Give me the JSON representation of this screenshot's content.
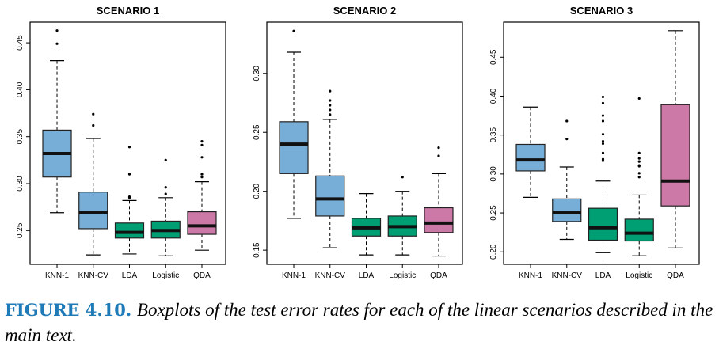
{
  "colors": {
    "knn": "#76aed8",
    "linear": "#009e73",
    "qda": "#cc79a7"
  },
  "caption": {
    "label": "FIGURE 4.10.",
    "text": "Boxplots of the test error rates for each of the linear scenarios described in the main text."
  },
  "chart_data": [
    {
      "type": "boxplot",
      "title": "SCENARIO 1",
      "categories": [
        "KNN-1",
        "KNN-CV",
        "LDA",
        "Logistic",
        "QDA"
      ],
      "ylim": [
        0.214,
        0.472
      ],
      "yticks": [
        0.25,
        0.3,
        0.35,
        0.4,
        0.45
      ],
      "ytick_labels": [
        "0.25",
        "0.30",
        "0.35",
        "0.40",
        "0.45"
      ],
      "boxes": [
        {
          "low": 0.269,
          "q1": 0.307,
          "median": 0.332,
          "q3": 0.357,
          "high": 0.431,
          "outliers": [
            0.463,
            0.449
          ],
          "color": "knn"
        },
        {
          "low": 0.224,
          "q1": 0.252,
          "median": 0.269,
          "q3": 0.291,
          "high": 0.348,
          "outliers": [
            0.374,
            0.362
          ],
          "color": "knn"
        },
        {
          "low": 0.225,
          "q1": 0.242,
          "median": 0.248,
          "q3": 0.258,
          "high": 0.282,
          "outliers": [
            0.339,
            0.31,
            0.286,
            0.285
          ],
          "color": "linear"
        },
        {
          "low": 0.223,
          "q1": 0.242,
          "median": 0.25,
          "q3": 0.26,
          "high": 0.285,
          "outliers": [
            0.325,
            0.296,
            0.289
          ],
          "color": "linear"
        },
        {
          "low": 0.229,
          "q1": 0.246,
          "median": 0.255,
          "q3": 0.27,
          "high": 0.302,
          "outliers": [
            0.345,
            0.341,
            0.328,
            0.31,
            0.307
          ],
          "color": "qda"
        }
      ]
    },
    {
      "type": "boxplot",
      "title": "SCENARIO 2",
      "categories": [
        "KNN-1",
        "KNN-CV",
        "LDA",
        "Logistic",
        "QDA"
      ],
      "ylim": [
        0.138,
        0.3435
      ],
      "yticks": [
        0.15,
        0.2,
        0.25,
        0.3
      ],
      "ytick_labels": [
        "0.15",
        "0.20",
        "0.25",
        "0.30"
      ],
      "boxes": [
        {
          "low": 0.177,
          "q1": 0.215,
          "median": 0.24,
          "q3": 0.259,
          "high": 0.318,
          "outliers": [
            0.336
          ],
          "color": "knn"
        },
        {
          "low": 0.152,
          "q1": 0.179,
          "median": 0.1935,
          "q3": 0.213,
          "high": 0.261,
          "outliers": [
            0.285,
            0.277,
            0.273,
            0.269,
            0.265
          ],
          "color": "knn"
        },
        {
          "low": 0.146,
          "q1": 0.162,
          "median": 0.169,
          "q3": 0.177,
          "high": 0.198,
          "outliers": [],
          "color": "linear"
        },
        {
          "low": 0.146,
          "q1": 0.162,
          "median": 0.17,
          "q3": 0.179,
          "high": 0.2,
          "outliers": [
            0.212
          ],
          "color": "linear"
        },
        {
          "low": 0.145,
          "q1": 0.165,
          "median": 0.173,
          "q3": 0.186,
          "high": 0.215,
          "outliers": [
            0.237,
            0.23
          ],
          "color": "qda"
        }
      ]
    },
    {
      "type": "boxplot",
      "title": "SCENARIO 3",
      "categories": [
        "KNN-1",
        "KNN-CV",
        "LDA",
        "Logistic",
        "QDA"
      ],
      "ylim": [
        0.184,
        0.495
      ],
      "yticks": [
        0.2,
        0.25,
        0.3,
        0.35,
        0.4,
        0.45
      ],
      "ytick_labels": [
        "0.20",
        "0.25",
        "0.30",
        "0.35",
        "0.40",
        "0.45"
      ],
      "boxes": [
        {
          "low": 0.27,
          "q1": 0.304,
          "median": 0.318,
          "q3": 0.338,
          "high": 0.386,
          "outliers": [],
          "color": "knn"
        },
        {
          "low": 0.216,
          "q1": 0.239,
          "median": 0.251,
          "q3": 0.268,
          "high": 0.309,
          "outliers": [
            0.368,
            0.345
          ],
          "color": "knn"
        },
        {
          "low": 0.199,
          "q1": 0.215,
          "median": 0.231,
          "q3": 0.256,
          "high": 0.291,
          "outliers": [
            0.399,
            0.391,
            0.375,
            0.368,
            0.351,
            0.342,
            0.339,
            0.327,
            0.319,
            0.317
          ],
          "color": "linear"
        },
        {
          "low": 0.195,
          "q1": 0.214,
          "median": 0.224,
          "q3": 0.242,
          "high": 0.273,
          "outliers": [
            0.397,
            0.327,
            0.32,
            0.316,
            0.311,
            0.31,
            0.301,
            0.296
          ],
          "color": "linear"
        },
        {
          "low": 0.205,
          "q1": 0.259,
          "median": 0.291,
          "q3": 0.389,
          "high": 0.484,
          "outliers": [],
          "color": "qda"
        }
      ]
    }
  ]
}
